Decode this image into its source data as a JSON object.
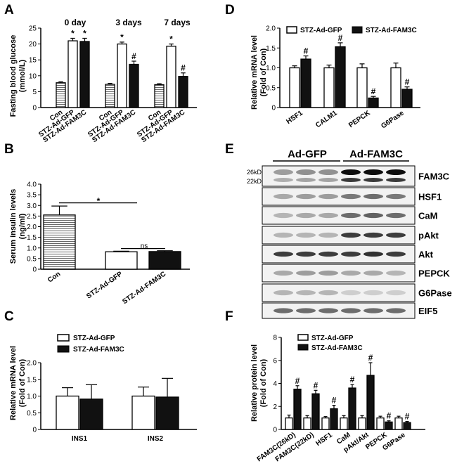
{
  "colors": {
    "white_bar": "#ffffff",
    "black_bar": "#111111",
    "hatched_bar": "#cfcfcf"
  },
  "chart_data": [
    {
      "panel": "A",
      "type": "bar",
      "ylabel": "Fasting blood glucose (mmol/L)",
      "ylim": [
        0,
        25
      ],
      "yticks": [
        "0",
        "5",
        "10",
        "15",
        "20",
        "25"
      ],
      "categories": [
        "Con",
        "STZ-Ad-GFP",
        "STZ-Ad-FAM3C"
      ],
      "groups": [
        {
          "title": "0 day",
          "values": [
            7.8,
            21.0,
            20.8
          ],
          "errors": [
            0.3,
            0.8,
            1.0
          ],
          "sig": [
            "",
            "*",
            "*"
          ]
        },
        {
          "title": "3 days",
          "values": [
            7.3,
            20.0,
            13.6
          ],
          "errors": [
            0.3,
            0.6,
            1.0
          ],
          "sig": [
            "",
            "*",
            "#"
          ]
        },
        {
          "title": "7 days",
          "values": [
            7.2,
            19.3,
            9.8
          ],
          "errors": [
            0.3,
            0.7,
            1.1
          ],
          "sig": [
            "",
            "*",
            "#"
          ]
        }
      ]
    },
    {
      "panel": "B",
      "type": "bar",
      "ylabel": "Serum insulin levels (ng/ml)",
      "ylim": [
        0,
        4.0
      ],
      "yticks": [
        "0",
        "0.5",
        "1.0",
        "1.5",
        "2.0",
        "2.5",
        "3.0",
        "3.5",
        "4.0"
      ],
      "categories": [
        "Con",
        "STZ-Ad-GFP",
        "STZ-Ad-FAM3C"
      ],
      "values": [
        2.55,
        0.82,
        0.83
      ],
      "errors": [
        0.42,
        0.03,
        0.04
      ],
      "annotations": [
        "*",
        "ns"
      ]
    },
    {
      "panel": "C",
      "type": "bar",
      "ylabel": "Relative mRNA level (Fold of Con)",
      "ylim": [
        0,
        2.0
      ],
      "yticks": [
        "0",
        "0.5",
        "1.0",
        "1.5",
        "2.0"
      ],
      "categories": [
        "INS1",
        "INS2"
      ],
      "series": [
        {
          "name": "STZ-Ad-GFP",
          "values": [
            1.0,
            1.0
          ],
          "errors": [
            0.25,
            0.27
          ]
        },
        {
          "name": "STZ-Ad-FAM3C",
          "values": [
            0.91,
            0.97
          ],
          "errors": [
            0.43,
            0.56
          ]
        }
      ]
    },
    {
      "panel": "D",
      "type": "bar",
      "ylabel": "Relative mRNA level (Fold of Con)",
      "ylim": [
        0,
        2.0
      ],
      "yticks": [
        "0",
        "0.5",
        "1.0",
        "1.5",
        "2.0"
      ],
      "categories": [
        "HSF1",
        "CALM1",
        "PEPCK",
        "G6Pase"
      ],
      "series": [
        {
          "name": "STZ-Ad-GFP",
          "values": [
            1.0,
            1.0,
            1.0,
            1.0
          ],
          "errors": [
            0.05,
            0.07,
            0.1,
            0.12
          ]
        },
        {
          "name": "STZ-Ad-FAM3C",
          "values": [
            1.22,
            1.53,
            0.24,
            0.46
          ],
          "errors": [
            0.08,
            0.1,
            0.04,
            0.06
          ],
          "sig": [
            "#",
            "#",
            "#",
            "#"
          ]
        }
      ]
    },
    {
      "panel": "F",
      "type": "bar",
      "ylabel": "Relative protein level (Fold of Con)",
      "ylim": [
        0,
        8
      ],
      "yticks": [
        "0",
        "2",
        "4",
        "6",
        "8"
      ],
      "categories": [
        "FAM3C(26kD)",
        "FAM3C(22kD)",
        "HSF1",
        "CaM",
        "pAkt/Akt",
        "PEPCK",
        "G6Pase"
      ],
      "series": [
        {
          "name": "STZ-Ad-GFP",
          "values": [
            1.0,
            1.0,
            1.0,
            1.0,
            1.0,
            1.0,
            1.0
          ],
          "errors": [
            0.25,
            0.2,
            0.12,
            0.2,
            0.2,
            0.15,
            0.15
          ]
        },
        {
          "name": "STZ-Ad-FAM3C",
          "values": [
            3.5,
            3.1,
            1.8,
            3.6,
            4.7,
            0.65,
            0.6
          ],
          "errors": [
            0.3,
            0.3,
            0.3,
            0.3,
            1.1,
            0.1,
            0.1
          ],
          "sig": [
            "#",
            "#",
            "#",
            "#",
            "#",
            "#",
            "#"
          ]
        }
      ]
    }
  ],
  "panel_letters": {
    "a": "A",
    "b": "B",
    "c": "C",
    "d": "D",
    "e": "E",
    "f": "F"
  },
  "panelA": {
    "ylabel1": "Fasting blood glucose",
    "ylabel2": "(mmol/L)",
    "g1": "0 day",
    "g2": "3 days",
    "g3": "7 days",
    "xcats": [
      "Con",
      "STZ-Ad-GFP",
      "STZ-Ad-FAM3C"
    ]
  },
  "panelB": {
    "ylabel1": "Serum insulin levels",
    "ylabel2": "(ng/ml)",
    "star": "*",
    "ns": "ns",
    "xcats": [
      "Con",
      "STZ-Ad-GFP",
      "STZ-Ad-FAM3C"
    ]
  },
  "panelC": {
    "ylabel1": "Relative mRNA level",
    "ylabel2": "(Fold of Con)",
    "legend": [
      "STZ-Ad-GFP",
      "STZ-Ad-FAM3C"
    ]
  },
  "panelD": {
    "ylabel1": "Relative  mRNA level",
    "ylabel2": "(Fold of Con)",
    "legend": [
      "STZ-Ad-GFP",
      "STZ-Ad-FAM3C"
    ]
  },
  "panelE": {
    "group1": "Ad-GFP",
    "group2": "Ad-FAM3C",
    "kd26": "26kD",
    "kd22": "22kD",
    "blots": [
      "FAM3C",
      "HSF1",
      "CaM",
      "pAkt",
      "Akt",
      "PEPCK",
      "G6Pase",
      "EIF5"
    ]
  },
  "panelF": {
    "ylabel1": "Relative protein level",
    "ylabel2": "(Fold of Con)",
    "legend": [
      "STZ-Ad-GFP",
      "STZ-Ad-FAM3C"
    ]
  }
}
